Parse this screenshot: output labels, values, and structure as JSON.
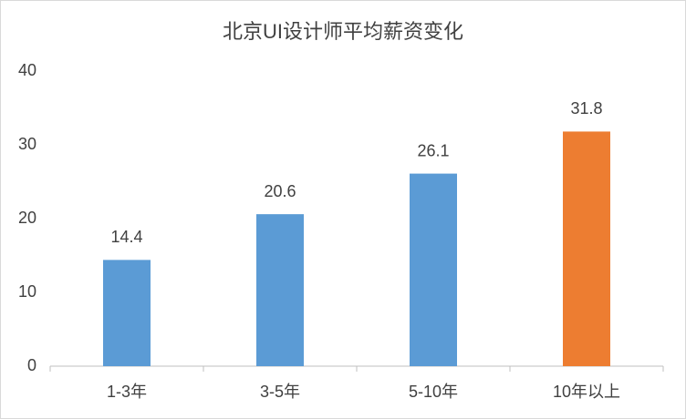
{
  "chart_data": {
    "type": "bar",
    "title": "北京UI设计师平均薪资变化",
    "categories": [
      "1-3年",
      "3-5年",
      "5-10年",
      "10年以上"
    ],
    "values": [
      14.4,
      20.6,
      26.1,
      31.8
    ],
    "colors": [
      "#5b9bd5",
      "#5b9bd5",
      "#5b9bd5",
      "#ed7d31"
    ],
    "ylim": [
      0,
      40
    ],
    "yticks": [
      0,
      10,
      20,
      30,
      40
    ],
    "grid": false
  }
}
